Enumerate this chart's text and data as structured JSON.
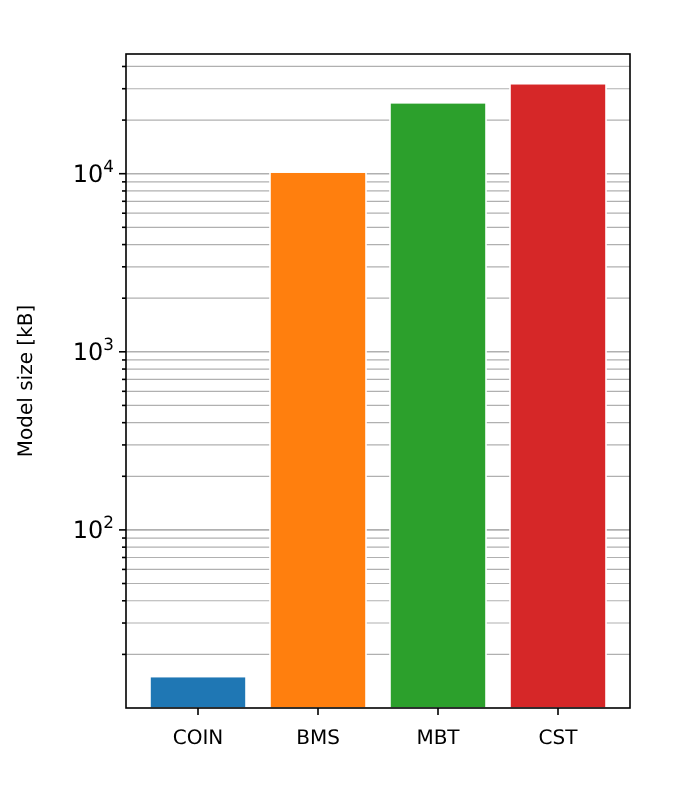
{
  "chart_data": {
    "type": "bar",
    "ylabel": "Model size [kB]",
    "categories": [
      "COIN",
      "BMS",
      "MBT",
      "CST"
    ],
    "values": [
      15,
      10200,
      25000,
      32000
    ],
    "colors": [
      "#1f77b4",
      "#ff7f0e",
      "#2ca02c",
      "#d62728"
    ],
    "log": true,
    "grid": "y",
    "ylim": [
      10,
      47000
    ],
    "yticks": [
      {
        "value": 20,
        "label": null
      },
      {
        "value": 30,
        "label": null
      },
      {
        "value": 40,
        "label": null
      },
      {
        "value": 50,
        "label": null
      },
      {
        "value": 60,
        "label": null
      },
      {
        "value": 70,
        "label": null
      },
      {
        "value": 80,
        "label": null
      },
      {
        "value": 90,
        "label": null
      },
      {
        "value": 100,
        "label": "10$^{2}$"
      },
      {
        "value": 200,
        "label": null
      },
      {
        "value": 300,
        "label": null
      },
      {
        "value": 400,
        "label": null
      },
      {
        "value": 500,
        "label": null
      },
      {
        "value": 600,
        "label": null
      },
      {
        "value": 700,
        "label": null
      },
      {
        "value": 800,
        "label": null
      },
      {
        "value": 900,
        "label": null
      },
      {
        "value": 1000,
        "label": "10$^{3}$"
      },
      {
        "value": 2000,
        "label": null
      },
      {
        "value": 3000,
        "label": null
      },
      {
        "value": 4000,
        "label": null
      },
      {
        "value": 5000,
        "label": null
      },
      {
        "value": 6000,
        "label": null
      },
      {
        "value": 7000,
        "label": null
      },
      {
        "value": 8000,
        "label": null
      },
      {
        "value": 9000,
        "label": null
      },
      {
        "value": 10000,
        "label": "10$^{4}$"
      },
      {
        "value": 20000,
        "label": null
      },
      {
        "value": 30000,
        "label": null
      },
      {
        "value": 40000,
        "label": null
      }
    ]
  }
}
